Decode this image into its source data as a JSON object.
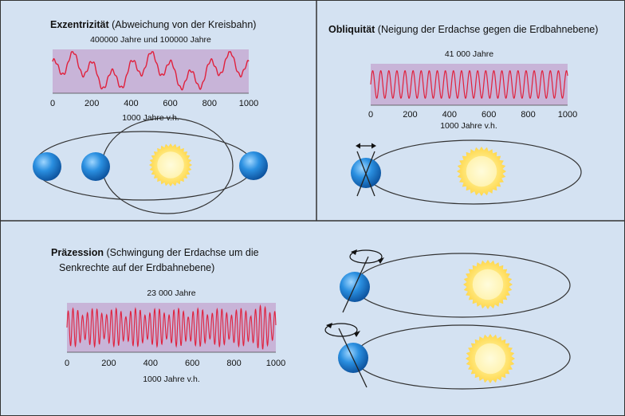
{
  "colors": {
    "panel_bg": "#d4e2f2",
    "plot_bg": "#c8b4d8",
    "wave": "#e0203c",
    "border": "#333333",
    "earth": "#1f7fd0",
    "sun": "#ffe466"
  },
  "icons": {
    "earth": "earth-icon",
    "sun": "sun-icon",
    "rotation": "rotation-arrow-icon",
    "tilt": "tilt-range-arrow-icon"
  },
  "panels": {
    "eccentricity": {
      "title_bold": "Exzentrizität",
      "title_rest": " (Abweichung von der Kreisbahn)",
      "period": "400000 Jahre und 100000 Jahre",
      "xlabel": "1000 Jahre v.h."
    },
    "obliquity": {
      "title_bold": "Obliquität",
      "title_rest": " (Neigung der Erdachse gegen die Erdbahnebene)",
      "period": "41 000 Jahre",
      "xlabel": "1000 Jahre v.h."
    },
    "precession": {
      "title_bold": "Präzession",
      "title_rest": " (Schwingung der Erdachse um die",
      "title_line2": "Senkrechte auf der Erdbahnebene)",
      "period": "23 000 Jahre",
      "xlabel": "1000 Jahre v.h."
    }
  },
  "chart_data": [
    {
      "type": "line",
      "id": "eccentricity",
      "title": "Exzentrizität (Abweichung von der Kreisbahn)",
      "subtitle": "400000 Jahre und 100000 Jahre",
      "xlabel": "1000 Jahre v.h.",
      "xlim": [
        0,
        1000
      ],
      "xticks": [
        "0",
        "200",
        "400",
        "600",
        "800",
        "1000"
      ],
      "series": [
        {
          "x": [
            0,
            1000
          ],
          "periods": [
            400,
            100
          ],
          "amplitudes": [
            0.55,
            0.6
          ]
        }
      ]
    },
    {
      "type": "line",
      "id": "obliquity",
      "title": "Obliquität (Neigung der Erdachse gegen die Erdbahnebene)",
      "subtitle": "41 000 Jahre",
      "xlabel": "1000 Jahre v.h.",
      "xlim": [
        0,
        1000
      ],
      "xticks": [
        "0",
        "200",
        "400",
        "600",
        "800",
        "1000"
      ],
      "series": [
        {
          "x": [
            0,
            1000
          ],
          "periods": [
            41
          ],
          "amplitudes": [
            0.75
          ]
        }
      ]
    },
    {
      "type": "line",
      "id": "precession",
      "title": "Präzession (Schwingung der Erdachse um die Senkrechte auf der Erdbahnebene)",
      "subtitle": "23 000 Jahre",
      "xlabel": "1000 Jahre v.h.",
      "xlim": [
        0,
        1000
      ],
      "xticks": [
        "0",
        "200",
        "400",
        "600",
        "800",
        "1000"
      ],
      "series": [
        {
          "x": [
            0,
            1000
          ],
          "periods": [
            23
          ],
          "amplitudes": [
            0.85
          ],
          "modulation_period": 100
        }
      ]
    }
  ]
}
